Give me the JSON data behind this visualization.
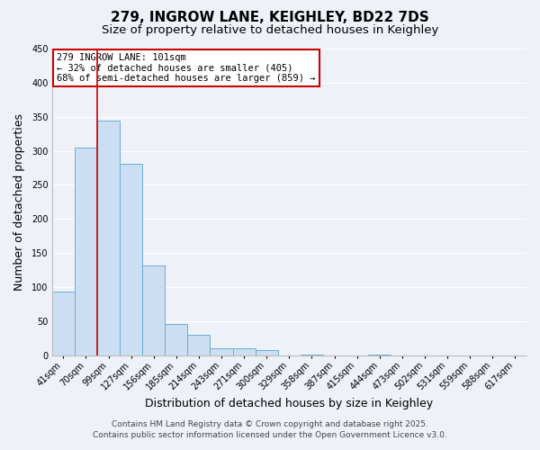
{
  "title_line1": "279, INGROW LANE, KEIGHLEY, BD22 7DS",
  "title_line2": "Size of property relative to detached houses in Keighley",
  "xlabel": "Distribution of detached houses by size in Keighley",
  "ylabel": "Number of detached properties",
  "all_labels": [
    "41sqm",
    "70sqm",
    "99sqm",
    "127sqm",
    "156sqm",
    "185sqm",
    "214sqm",
    "243sqm",
    "271sqm",
    "300sqm",
    "329sqm",
    "358sqm",
    "387sqm",
    "415sqm",
    "444sqm",
    "473sqm",
    "502sqm",
    "531sqm",
    "559sqm",
    "588sqm",
    "617sqm"
  ],
  "all_values": [
    93,
    305,
    344,
    281,
    132,
    46,
    30,
    10,
    10,
    8,
    0,
    1,
    0,
    0,
    1,
    0,
    0,
    0,
    0,
    0,
    0
  ],
  "bar_color": "#ccdff2",
  "bar_edge_color": "#6aaed6",
  "vline_color": "#cc0000",
  "vline_index": 1.5,
  "ylim": [
    0,
    450
  ],
  "yticks": [
    0,
    50,
    100,
    150,
    200,
    250,
    300,
    350,
    400,
    450
  ],
  "annotation_line1": "279 INGROW LANE: 101sqm",
  "annotation_line2": "← 32% of detached houses are smaller (405)",
  "annotation_line3": "68% of semi-detached houses are larger (859) →",
  "annotation_box_color": "#ffffff",
  "annotation_box_edge": "#cc0000",
  "footer_line1": "Contains HM Land Registry data © Crown copyright and database right 2025.",
  "footer_line2": "Contains public sector information licensed under the Open Government Licence v3.0.",
  "background_color": "#eef2f8",
  "grid_color": "#ffffff",
  "title_fontsize": 11,
  "subtitle_fontsize": 9.5,
  "axis_label_fontsize": 9,
  "tick_fontsize": 7,
  "annotation_fontsize": 7.5,
  "footer_fontsize": 6.5
}
